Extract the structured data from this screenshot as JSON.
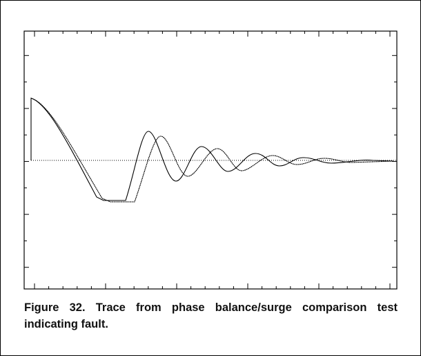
{
  "figure": {
    "caption": "Figure 32. Trace from phase balance/surge comparison test indicating fault."
  }
}
